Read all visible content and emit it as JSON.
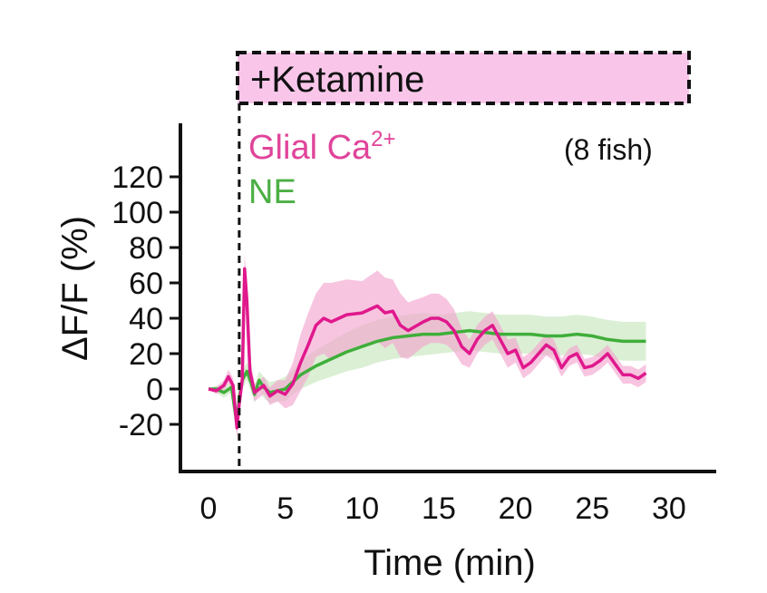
{
  "chart_data": {
    "type": "line",
    "title": "",
    "xlabel": "Time (min)",
    "ylabel": "ΔF/F  (%)",
    "xlim": [
      0,
      30
    ],
    "ylim": [
      -35,
      125
    ],
    "x_ticks": [
      "0",
      "5",
      "10",
      "15",
      "20",
      "25",
      "30"
    ],
    "y_ticks": [
      "120",
      "100",
      "80",
      "60",
      "40",
      "20",
      "0",
      "-20"
    ],
    "treatment": {
      "label": "+Ketamine",
      "start_min": 2,
      "color": "#f9c6ea"
    },
    "annotation": "(8 fish)",
    "legend": [
      {
        "text": "Glial Ca",
        "sup": "2+",
        "color": "#e0449a"
      },
      {
        "text": "NE",
        "sup": "",
        "color": "#4caf45"
      }
    ],
    "series": [
      {
        "name": "Glial Ca2+",
        "color": "#e0188c",
        "band_color": "#f2a6cf",
        "x": [
          0,
          0.5,
          1,
          1.3,
          1.6,
          1.85,
          2.0,
          2.2,
          2.35,
          2.5,
          2.7,
          3.0,
          3.3,
          3.6,
          4.0,
          4.5,
          5.0,
          5.5,
          6.0,
          6.5,
          7.0,
          7.5,
          8.0,
          9.0,
          10.0,
          11.0,
          11.5,
          12.0,
          12.5,
          13.0,
          14.0,
          14.5,
          15.0,
          15.5,
          16.0,
          16.5,
          17.0,
          17.5,
          18.0,
          18.5,
          19.0,
          19.5,
          20.0,
          20.5,
          21.0,
          22.0,
          22.5,
          23.0,
          23.5,
          24.0,
          24.5,
          25.0,
          25.5,
          26.0,
          26.5,
          27.0,
          27.5,
          28.0,
          28.5
        ],
        "y": [
          0,
          -1,
          2,
          7,
          2,
          -22,
          -8,
          5,
          68,
          50,
          10,
          -2,
          0,
          2,
          -4,
          -1,
          -3,
          3,
          15,
          25,
          36,
          40,
          38,
          42,
          43,
          47,
          43,
          44,
          36,
          33,
          38,
          40,
          40,
          38,
          33,
          24,
          20,
          28,
          33,
          36,
          28,
          20,
          22,
          12,
          15,
          25,
          22,
          12,
          18,
          20,
          12,
          13,
          16,
          20,
          14,
          8,
          8,
          6,
          9
        ],
        "error": [
          0,
          2,
          3,
          4,
          4,
          6,
          6,
          8,
          8,
          12,
          8,
          5,
          5,
          5,
          5,
          6,
          8,
          12,
          16,
          18,
          18,
          20,
          22,
          20,
          18,
          20,
          20,
          18,
          18,
          16,
          14,
          14,
          14,
          13,
          12,
          10,
          8,
          8,
          8,
          8,
          8,
          8,
          7,
          6,
          6,
          6,
          6,
          5,
          5,
          5,
          5,
          5,
          5,
          5,
          5,
          5,
          5,
          5,
          5
        ]
      },
      {
        "name": "NE",
        "color": "#3fae3a",
        "band_color": "#cfe9c6",
        "x": [
          0,
          0.5,
          1,
          1.5,
          1.85,
          2.0,
          2.2,
          2.5,
          2.8,
          3.0,
          3.3,
          3.6,
          4.0,
          4.5,
          5.0,
          5.5,
          6.0,
          7.0,
          8.0,
          9.0,
          10.0,
          11.0,
          12.0,
          13.0,
          14.0,
          15.0,
          16.0,
          17.0,
          18.0,
          19.0,
          20.0,
          21.0,
          22.0,
          23.0,
          24.0,
          25.0,
          25.5,
          26.0,
          27.0,
          28.0,
          28.5
        ],
        "y": [
          0,
          0,
          -2,
          1,
          -20,
          -5,
          5,
          10,
          3,
          -3,
          5,
          1,
          -2,
          -1,
          0,
          4,
          8,
          13,
          17,
          21,
          24,
          27,
          29,
          30,
          31,
          31,
          32,
          33,
          32,
          31,
          31,
          31,
          30,
          30,
          31,
          30,
          29,
          28,
          27,
          27,
          27
        ],
        "error": [
          0,
          2,
          3,
          3,
          5,
          5,
          5,
          5,
          5,
          5,
          5,
          6,
          6,
          6,
          7,
          7,
          8,
          9,
          10,
          11,
          12,
          12,
          12,
          12,
          12,
          11,
          11,
          11,
          11,
          11,
          11,
          11,
          11,
          11,
          11,
          11,
          11,
          11,
          11,
          11,
          11
        ]
      }
    ],
    "grid": false
  }
}
